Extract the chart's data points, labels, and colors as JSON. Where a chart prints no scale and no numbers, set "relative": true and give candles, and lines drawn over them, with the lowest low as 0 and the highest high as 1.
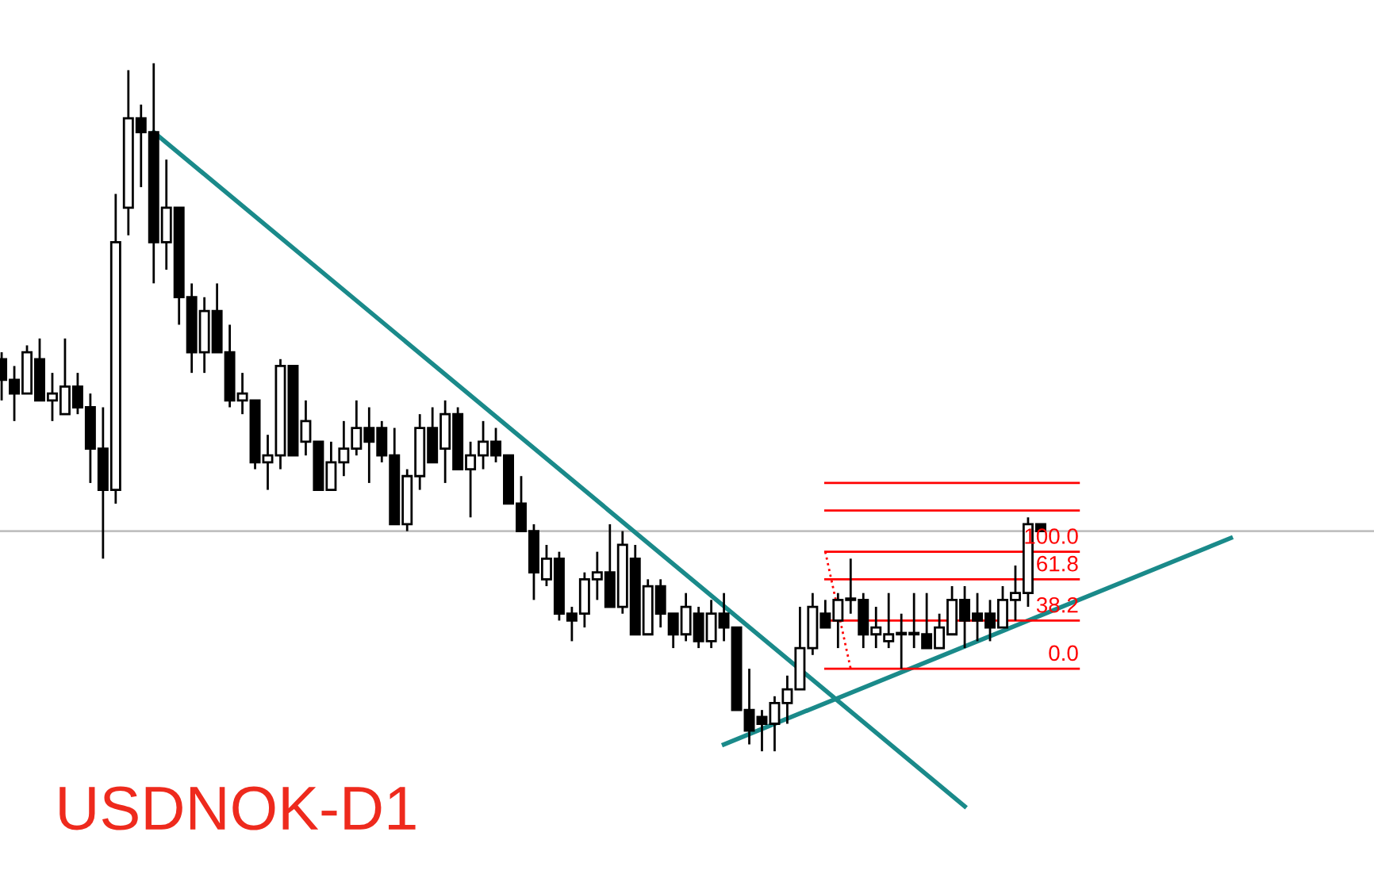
{
  "chart_data": {
    "type": "candlestick",
    "title": "USDNOK-D1",
    "relative": true,
    "categories": [
      null,
      null,
      null,
      null,
      null,
      null,
      null,
      null,
      null,
      null,
      null,
      null,
      null,
      null,
      null,
      null,
      null,
      null,
      null,
      null,
      null,
      null,
      null,
      null,
      null,
      null,
      null,
      null,
      null,
      null,
      null,
      null,
      null,
      null,
      null,
      null,
      null,
      null,
      null,
      null,
      null,
      null,
      null,
      null,
      null,
      null,
      null,
      null,
      null,
      null,
      null,
      null,
      null,
      null,
      null,
      null,
      null,
      null,
      null,
      null,
      null,
      null,
      null,
      null,
      null,
      null,
      null,
      null,
      null,
      null,
      null,
      null,
      null,
      null,
      null,
      null,
      null,
      null,
      null,
      null,
      null,
      null,
      null,
      null,
      null,
      null,
      null,
      null,
      null,
      null,
      null,
      null,
      null,
      null,
      null,
      null,
      null,
      null,
      null,
      null,
      null,
      null,
      null,
      null,
      null,
      null,
      null,
      null,
      null
    ],
    "ohlc": [
      [
        0.57,
        0.58,
        0.51,
        0.54
      ],
      [
        0.54,
        0.56,
        0.48,
        0.52
      ],
      [
        0.52,
        0.59,
        0.52,
        0.58
      ],
      [
        0.57,
        0.6,
        0.51,
        0.51
      ],
      [
        0.51,
        0.55,
        0.48,
        0.52
      ],
      [
        0.49,
        0.6,
        0.49,
        0.53
      ],
      [
        0.53,
        0.55,
        0.49,
        0.5
      ],
      [
        0.5,
        0.52,
        0.39,
        0.44
      ],
      [
        0.44,
        0.5,
        0.28,
        0.38
      ],
      [
        0.38,
        0.81,
        0.36,
        0.74
      ],
      [
        0.79,
        0.99,
        0.75,
        0.92
      ],
      [
        0.92,
        0.94,
        0.82,
        0.9
      ],
      [
        0.9,
        1.0,
        0.68,
        0.74
      ],
      [
        0.74,
        0.86,
        0.7,
        0.79
      ],
      [
        0.79,
        0.79,
        0.62,
        0.66
      ],
      [
        0.66,
        0.68,
        0.55,
        0.58
      ],
      [
        0.58,
        0.66,
        0.55,
        0.64
      ],
      [
        0.64,
        0.68,
        0.58,
        0.58
      ],
      [
        0.58,
        0.62,
        0.5,
        0.51
      ],
      [
        0.51,
        0.55,
        0.49,
        0.52
      ],
      [
        0.51,
        0.51,
        0.41,
        0.42
      ],
      [
        0.42,
        0.46,
        0.38,
        0.43
      ],
      [
        0.43,
        0.57,
        0.41,
        0.56
      ],
      [
        0.56,
        0.56,
        0.43,
        0.43
      ],
      [
        0.45,
        0.51,
        0.43,
        0.48
      ],
      [
        0.45,
        0.45,
        0.38,
        0.38
      ],
      [
        0.38,
        0.45,
        0.38,
        0.42
      ],
      [
        0.42,
        0.48,
        0.4,
        0.44
      ],
      [
        0.44,
        0.51,
        0.43,
        0.47
      ],
      [
        0.47,
        0.5,
        0.39,
        0.45
      ],
      [
        0.47,
        0.48,
        0.42,
        0.43
      ],
      [
        0.43,
        0.47,
        0.33,
        0.33
      ],
      [
        0.33,
        0.41,
        0.32,
        0.4
      ],
      [
        0.4,
        0.49,
        0.38,
        0.47
      ],
      [
        0.47,
        0.5,
        0.42,
        0.42
      ],
      [
        0.44,
        0.51,
        0.39,
        0.49
      ],
      [
        0.49,
        0.5,
        0.41,
        0.41
      ],
      [
        0.41,
        0.45,
        0.34,
        0.43
      ],
      [
        0.43,
        0.48,
        0.41,
        0.45
      ],
      [
        0.45,
        0.47,
        0.42,
        0.43
      ],
      [
        0.43,
        0.43,
        0.36,
        0.36
      ],
      [
        0.36,
        0.4,
        0.32,
        0.32
      ],
      [
        0.32,
        0.33,
        0.22,
        0.26
      ],
      [
        0.25,
        0.3,
        0.24,
        0.28
      ],
      [
        0.28,
        0.29,
        0.19,
        0.2
      ],
      [
        0.2,
        0.21,
        0.16,
        0.19
      ],
      [
        0.2,
        0.26,
        0.18,
        0.25
      ],
      [
        0.25,
        0.29,
        0.22,
        0.26
      ],
      [
        0.26,
        0.33,
        0.21,
        0.21
      ],
      [
        0.21,
        0.32,
        0.2,
        0.3
      ],
      [
        0.28,
        0.3,
        0.17,
        0.17
      ],
      [
        0.17,
        0.25,
        0.17,
        0.24
      ],
      [
        0.24,
        0.25,
        0.18,
        0.2
      ],
      [
        0.2,
        0.2,
        0.15,
        0.17
      ],
      [
        0.17,
        0.23,
        0.16,
        0.21
      ],
      [
        0.2,
        0.21,
        0.15,
        0.16
      ],
      [
        0.16,
        0.22,
        0.15,
        0.2
      ],
      [
        0.2,
        0.23,
        0.16,
        0.18
      ],
      [
        0.18,
        0.18,
        0.06,
        0.06
      ],
      [
        0.06,
        0.12,
        0.01,
        0.03
      ],
      [
        0.05,
        0.06,
        0.0,
        0.04
      ],
      [
        0.04,
        0.08,
        0.0,
        0.07
      ],
      [
        0.07,
        0.11,
        0.04,
        0.09
      ],
      [
        0.09,
        0.21,
        0.09,
        0.15
      ],
      [
        0.15,
        0.23,
        0.14,
        0.21
      ],
      [
        0.2,
        0.22,
        0.18,
        0.18
      ],
      [
        0.19,
        0.23,
        0.15,
        0.22
      ],
      [
        0.22,
        0.28,
        0.2,
        0.22
      ],
      [
        0.22,
        0.23,
        0.15,
        0.17
      ],
      [
        0.17,
        0.21,
        0.15,
        0.18
      ],
      [
        0.16,
        0.23,
        0.15,
        0.17
      ],
      [
        0.17,
        0.2,
        0.12,
        0.17
      ],
      [
        0.17,
        0.23,
        0.15,
        0.17
      ],
      [
        0.17,
        0.23,
        0.15,
        0.15
      ],
      [
        0.15,
        0.2,
        0.15,
        0.18
      ],
      [
        0.17,
        0.24,
        0.17,
        0.22
      ],
      [
        0.22,
        0.24,
        0.15,
        0.19
      ],
      [
        0.2,
        0.23,
        0.16,
        0.19
      ],
      [
        0.2,
        0.22,
        0.16,
        0.18
      ],
      [
        0.18,
        0.24,
        0.18,
        0.22
      ],
      [
        0.22,
        0.27,
        0.19,
        0.23
      ],
      [
        0.23,
        0.34,
        0.21,
        0.33
      ],
      [
        0.33,
        0.33,
        0.32,
        0.32
      ],
      null,
      null,
      null,
      null,
      null,
      null,
      null,
      null,
      null,
      null,
      null,
      null,
      null,
      null,
      null,
      null,
      null,
      null,
      null,
      null,
      null,
      null,
      null,
      null,
      null,
      null
    ],
    "series": [
      {
        "type": "line",
        "color": "#1a8a8a",
        "values": [
          null,
          null,
          null,
          null,
          null,
          null,
          null,
          null,
          null,
          null,
          null,
          null,
          0.9,
          null,
          null,
          null,
          null,
          null,
          null,
          null,
          null,
          null,
          null,
          null,
          null,
          null,
          null,
          null,
          null,
          null,
          null,
          null,
          null,
          null,
          null,
          null,
          null,
          null,
          null,
          null,
          null,
          null,
          null,
          null,
          null,
          null,
          null,
          null,
          null,
          null,
          null,
          null,
          null,
          null,
          null,
          null,
          null,
          null,
          null,
          null,
          null,
          null,
          null,
          null,
          null,
          null,
          null,
          null,
          null,
          null,
          null,
          null,
          null,
          null,
          null,
          null,
          -0.08,
          null,
          null,
          null,
          null,
          null,
          null,
          null,
          null,
          null,
          null,
          null,
          null,
          null,
          null,
          null,
          null,
          null,
          null,
          null,
          null,
          null,
          null,
          null,
          null,
          null,
          null,
          null,
          null,
          null,
          null,
          null,
          null
        ]
      },
      {
        "type": "line",
        "color": "#1a8a8a",
        "values": [
          null,
          null,
          null,
          null,
          null,
          null,
          null,
          null,
          null,
          null,
          null,
          null,
          null,
          null,
          null,
          null,
          null,
          null,
          null,
          null,
          null,
          null,
          null,
          null,
          null,
          null,
          null,
          null,
          null,
          null,
          null,
          null,
          null,
          null,
          null,
          null,
          null,
          null,
          null,
          null,
          null,
          null,
          null,
          null,
          null,
          null,
          null,
          null,
          null,
          null,
          null,
          null,
          null,
          null,
          null,
          null,
          null,
          0.01,
          null,
          null,
          null,
          null,
          null,
          null,
          null,
          null,
          null,
          null,
          null,
          null,
          null,
          null,
          null,
          null,
          null,
          null,
          null,
          null,
          null,
          null,
          null,
          null,
          null,
          null,
          null,
          null,
          null,
          null,
          null,
          null,
          null,
          null,
          null,
          null,
          null,
          null,
          null,
          0.31,
          null,
          null,
          null,
          null,
          null,
          null,
          null,
          null,
          null,
          null,
          null
        ]
      },
      {
        "type": "line",
        "color": "#ff0000",
        "line_style": "dotted",
        "values": [
          null,
          null,
          null,
          null,
          null,
          null,
          null,
          null,
          null,
          null,
          null,
          null,
          null,
          null,
          null,
          null,
          null,
          null,
          null,
          null,
          null,
          null,
          null,
          null,
          null,
          null,
          null,
          null,
          null,
          null,
          null,
          null,
          null,
          null,
          null,
          null,
          null,
          null,
          null,
          null,
          null,
          null,
          null,
          null,
          null,
          null,
          null,
          null,
          null,
          null,
          null,
          null,
          null,
          null,
          null,
          null,
          null,
          null,
          null,
          null,
          null,
          null,
          null,
          null,
          null,
          0.29,
          null,
          0.12,
          null,
          null,
          null,
          null,
          null,
          null,
          null,
          null,
          null,
          null,
          null,
          null,
          null,
          null,
          null,
          null,
          null,
          null,
          null,
          null,
          null,
          null,
          null,
          null,
          null,
          null,
          null,
          null,
          null,
          null,
          null,
          null,
          null,
          null,
          null,
          null,
          null,
          null,
          null,
          null,
          null
        ]
      },
      {
        "type": "line",
        "color": "#ff0000",
        "values": [
          null,
          null,
          null,
          null,
          null,
          null,
          null,
          null,
          null,
          null,
          null,
          null,
          null,
          null,
          null,
          null,
          null,
          null,
          null,
          null,
          null,
          null,
          null,
          null,
          null,
          null,
          null,
          null,
          null,
          null,
          null,
          null,
          null,
          null,
          null,
          null,
          null,
          null,
          null,
          null,
          null,
          null,
          null,
          null,
          null,
          null,
          null,
          null,
          null,
          null,
          null,
          null,
          null,
          null,
          null,
          null,
          null,
          null,
          null,
          null,
          null,
          null,
          null,
          null,
          null,
          0.39,
          null,
          null,
          null,
          null,
          null,
          null,
          null,
          null,
          null,
          null,
          null,
          null,
          null,
          null,
          null,
          null,
          null,
          null,
          null,
          0.39,
          null,
          null,
          null,
          null,
          null,
          null,
          null,
          null,
          null,
          null,
          null,
          null,
          null,
          null,
          null,
          null,
          null,
          null,
          null,
          null,
          null,
          null,
          null
        ]
      },
      {
        "type": "line",
        "color": "#ff0000",
        "values": [
          null,
          null,
          null,
          null,
          null,
          null,
          null,
          null,
          null,
          null,
          null,
          null,
          null,
          null,
          null,
          null,
          null,
          null,
          null,
          null,
          null,
          null,
          null,
          null,
          null,
          null,
          null,
          null,
          null,
          null,
          null,
          null,
          null,
          null,
          null,
          null,
          null,
          null,
          null,
          null,
          null,
          null,
          null,
          null,
          null,
          null,
          null,
          null,
          null,
          null,
          null,
          null,
          null,
          null,
          null,
          null,
          null,
          null,
          null,
          null,
          null,
          null,
          null,
          null,
          null,
          0.35,
          null,
          null,
          null,
          null,
          null,
          null,
          null,
          null,
          null,
          null,
          null,
          null,
          null,
          null,
          null,
          null,
          null,
          null,
          null,
          0.35,
          null,
          null,
          null,
          null,
          null,
          null,
          null,
          null,
          null,
          null,
          null,
          null,
          null,
          null,
          null,
          null,
          null,
          null,
          null,
          null,
          null,
          null,
          null
        ]
      },
      {
        "type": "line",
        "color": "#ff0000",
        "name": "100.0",
        "values": [
          null,
          null,
          null,
          null,
          null,
          null,
          null,
          null,
          null,
          null,
          null,
          null,
          null,
          null,
          null,
          null,
          null,
          null,
          null,
          null,
          null,
          null,
          null,
          null,
          null,
          null,
          null,
          null,
          null,
          null,
          null,
          null,
          null,
          null,
          null,
          null,
          null,
          null,
          null,
          null,
          null,
          null,
          null,
          null,
          null,
          null,
          null,
          null,
          null,
          null,
          null,
          null,
          null,
          null,
          null,
          null,
          null,
          null,
          null,
          null,
          null,
          null,
          null,
          null,
          null,
          0.29,
          null,
          null,
          null,
          null,
          null,
          null,
          null,
          null,
          null,
          null,
          null,
          null,
          null,
          null,
          null,
          null,
          null,
          null,
          null,
          0.29,
          null,
          null,
          null,
          null,
          null,
          null,
          null,
          null,
          null,
          null,
          null,
          null,
          null,
          null,
          null,
          null,
          null,
          null,
          null,
          null,
          null,
          null,
          null
        ]
      },
      {
        "type": "line",
        "color": "#ff0000",
        "name": "61.8",
        "values": [
          null,
          null,
          null,
          null,
          null,
          null,
          null,
          null,
          null,
          null,
          null,
          null,
          null,
          null,
          null,
          null,
          null,
          null,
          null,
          null,
          null,
          null,
          null,
          null,
          null,
          null,
          null,
          null,
          null,
          null,
          null,
          null,
          null,
          null,
          null,
          null,
          null,
          null,
          null,
          null,
          null,
          null,
          null,
          null,
          null,
          null,
          null,
          null,
          null,
          null,
          null,
          null,
          null,
          null,
          null,
          null,
          null,
          null,
          null,
          null,
          null,
          null,
          null,
          null,
          null,
          0.25,
          null,
          null,
          null,
          null,
          null,
          null,
          null,
          null,
          null,
          null,
          null,
          null,
          null,
          null,
          null,
          null,
          null,
          null,
          null,
          0.25,
          null,
          null,
          null,
          null,
          null,
          null,
          null,
          null,
          null,
          null,
          null,
          null,
          null,
          null,
          null,
          null,
          null,
          null,
          null,
          null,
          null,
          null,
          null
        ]
      },
      {
        "type": "line",
        "color": "#ff0000",
        "name": "38.2",
        "values": [
          null,
          null,
          null,
          null,
          null,
          null,
          null,
          null,
          null,
          null,
          null,
          null,
          null,
          null,
          null,
          null,
          null,
          null,
          null,
          null,
          null,
          null,
          null,
          null,
          null,
          null,
          null,
          null,
          null,
          null,
          null,
          null,
          null,
          null,
          null,
          null,
          null,
          null,
          null,
          null,
          null,
          null,
          null,
          null,
          null,
          null,
          null,
          null,
          null,
          null,
          null,
          null,
          null,
          null,
          null,
          null,
          null,
          null,
          null,
          null,
          null,
          null,
          null,
          null,
          null,
          0.19,
          null,
          null,
          null,
          null,
          null,
          null,
          null,
          null,
          null,
          null,
          null,
          null,
          null,
          null,
          null,
          null,
          null,
          null,
          null,
          0.19,
          null,
          null,
          null,
          null,
          null,
          null,
          null,
          null,
          null,
          null,
          null,
          null,
          null,
          null,
          null,
          null,
          null,
          null,
          null,
          null,
          null,
          null,
          null
        ]
      },
      {
        "type": "line",
        "color": "#ff0000",
        "name": "0.0",
        "values": [
          null,
          null,
          null,
          null,
          null,
          null,
          null,
          null,
          null,
          null,
          null,
          null,
          null,
          null,
          null,
          null,
          null,
          null,
          null,
          null,
          null,
          null,
          null,
          null,
          null,
          null,
          null,
          null,
          null,
          null,
          null,
          null,
          null,
          null,
          null,
          null,
          null,
          null,
          null,
          null,
          null,
          null,
          null,
          null,
          null,
          null,
          null,
          null,
          null,
          null,
          null,
          null,
          null,
          null,
          null,
          null,
          null,
          null,
          null,
          null,
          null,
          null,
          null,
          null,
          null,
          0.12,
          null,
          null,
          null,
          null,
          null,
          null,
          null,
          null,
          null,
          null,
          null,
          null,
          null,
          null,
          null,
          null,
          null,
          null,
          null,
          0.12,
          null,
          null,
          null,
          null,
          null,
          null,
          null,
          null,
          null,
          null,
          null,
          null,
          null,
          null,
          null,
          null,
          null,
          null,
          null,
          null,
          null,
          null,
          null
        ]
      }
    ],
    "ref_lines": [
      {
        "axis": "y",
        "value": 0.32,
        "color": "#c0c0c0"
      }
    ]
  }
}
